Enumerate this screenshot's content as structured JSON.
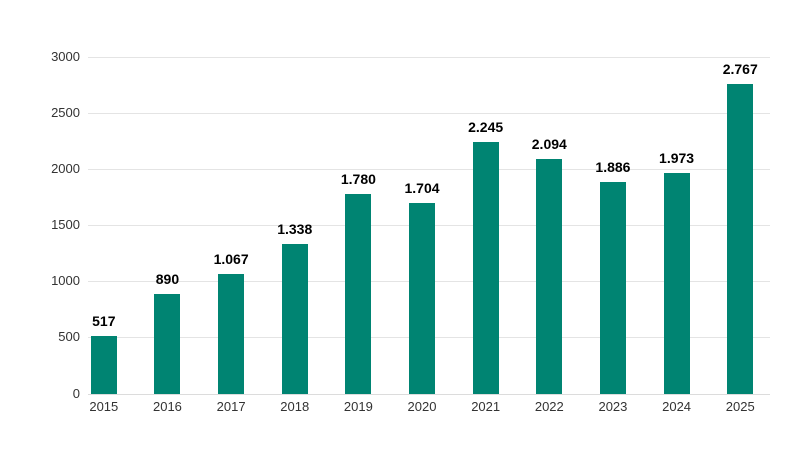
{
  "chart_data": {
    "type": "bar",
    "title": "",
    "xlabel": "",
    "ylabel": "",
    "categories": [
      "2015",
      "2016",
      "2017",
      "2018",
      "2019",
      "2020",
      "2021",
      "2022",
      "2023",
      "2024",
      "2025"
    ],
    "values": [
      517,
      890,
      1067,
      1338,
      1780,
      1704,
      2245,
      2094,
      1886,
      1973,
      2767
    ],
    "value_labels": [
      "517",
      "890",
      "1.067",
      "1.338",
      "1.780",
      "1.704",
      "2.245",
      "2.094",
      "1.886",
      "1.973",
      "2.767"
    ],
    "ylim": [
      0,
      3000
    ],
    "yticks": [
      0,
      500,
      1000,
      1500,
      2000,
      2500,
      3000
    ],
    "ytick_labels": [
      "0",
      "500",
      "1000",
      "1500",
      "2000",
      "2500",
      "3000"
    ],
    "grid": true,
    "legend_position": "none",
    "colors": {
      "bar": "#008472",
      "value_label": "#000000",
      "tick_label": "#333333",
      "gridline": "#e4e4e4",
      "baseline": "#dcdcdc",
      "background": "#ffffff"
    }
  }
}
